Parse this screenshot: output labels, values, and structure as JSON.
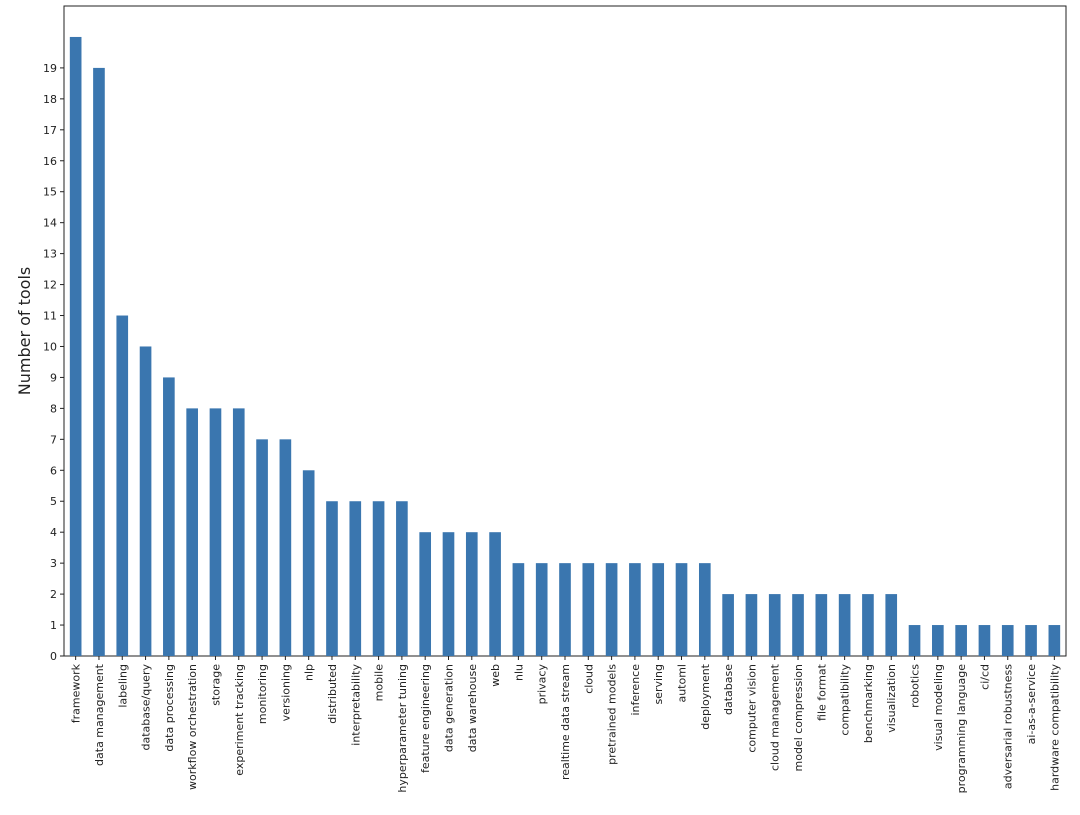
{
  "chart_data": {
    "type": "bar",
    "ylabel": "Number of tools",
    "categories": [
      "framework",
      "data management",
      "labeling",
      "database/query",
      "data processing",
      "workflow orchestration",
      "storage",
      "experiment tracking",
      "monitoring",
      "versioning",
      "nlp",
      "distributed",
      "interpretability",
      "mobile",
      "hyperparameter tuning",
      "feature engineering",
      "data generation",
      "data warehouse",
      "web",
      "nlu",
      "privacy",
      "realtime data stream",
      "cloud",
      "pretrained models",
      "inference",
      "serving",
      "automl",
      "deployment",
      "database",
      "computer vision",
      "cloud management",
      "model compression",
      "file format",
      "compatibility",
      "benchmarking",
      "visualization",
      "robotics",
      "visual modeling",
      "programming language",
      "ci/cd",
      "adversarial robustness",
      "ai-as-a-service",
      "hardware compatibility"
    ],
    "values": [
      20,
      19,
      11,
      10,
      9,
      8,
      8,
      8,
      7,
      7,
      6,
      5,
      5,
      5,
      5,
      4,
      4,
      4,
      4,
      3,
      3,
      3,
      3,
      3,
      3,
      3,
      3,
      3,
      2,
      2,
      2,
      2,
      2,
      2,
      2,
      2,
      1,
      1,
      1,
      1,
      1,
      1,
      1
    ],
    "color": "#3a76af",
    "ylim": [
      0,
      21
    ],
    "yticks": [
      0,
      1,
      2,
      3,
      4,
      5,
      6,
      7,
      8,
      9,
      10,
      11,
      12,
      13,
      14,
      15,
      16,
      17,
      18,
      19
    ]
  }
}
